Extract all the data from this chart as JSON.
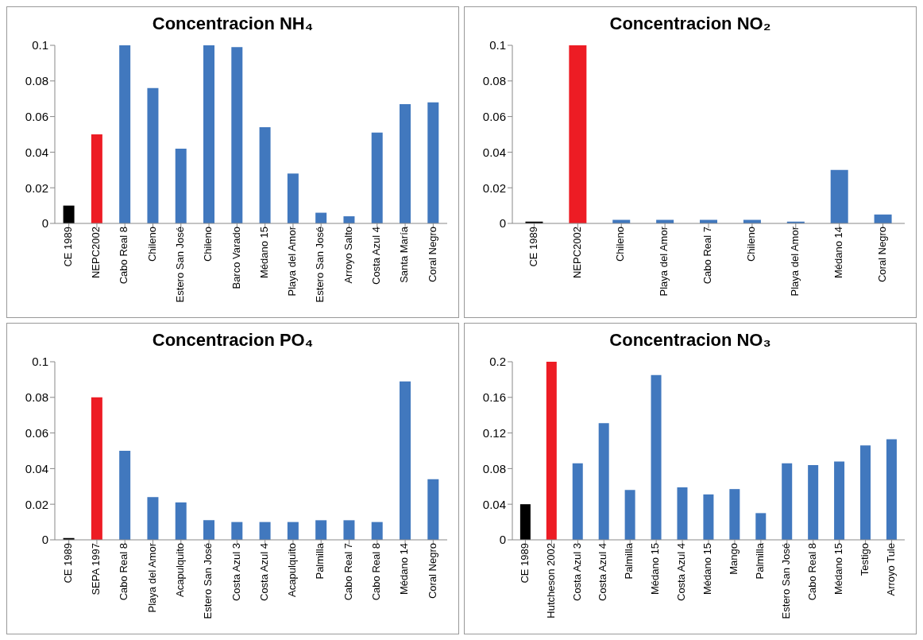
{
  "chart_data": [
    {
      "type": "bar",
      "title": "Concentracion NH₄",
      "categories": [
        "CE 1989",
        "NEPC2002",
        "Cabo Real 8",
        "Chileno",
        "Estero San José",
        "Chileno",
        "Barco Varado",
        "Médano 15",
        "Playa del Amor",
        "Estero San José",
        "Arroyo Salto",
        "Costa Azul 4",
        "Santa María",
        "Coral Negro"
      ],
      "values": [
        0.01,
        0.05,
        0.1,
        0.076,
        0.042,
        0.1,
        0.099,
        0.054,
        0.028,
        0.006,
        0.004,
        0.051,
        0.067,
        0.068
      ],
      "colors": [
        "#000000",
        "#ed1c24",
        "#4178be",
        "#4178be",
        "#4178be",
        "#4178be",
        "#4178be",
        "#4178be",
        "#4178be",
        "#4178be",
        "#4178be",
        "#4178be",
        "#4178be",
        "#4178be"
      ],
      "ylim": [
        0,
        0.1
      ],
      "yticks": [
        0,
        0.02,
        0.04,
        0.06,
        0.08,
        0.1
      ],
      "grid": false,
      "legend": false
    },
    {
      "type": "bar",
      "title": "Concentracion NO₂",
      "categories": [
        "CE 1989",
        "NEPC2002",
        "Chileno",
        "Playa del Amor",
        "Cabo Real 7",
        "Chileno",
        "Playa del Amor",
        "Médano 14",
        "Coral Negro"
      ],
      "values": [
        0.001,
        0.1,
        0.002,
        0.002,
        0.002,
        0.002,
        0.001,
        0.03,
        0.005
      ],
      "colors": [
        "#000000",
        "#ed1c24",
        "#4178be",
        "#4178be",
        "#4178be",
        "#4178be",
        "#4178be",
        "#4178be",
        "#4178be"
      ],
      "ylim": [
        0,
        0.1
      ],
      "yticks": [
        0,
        0.02,
        0.04,
        0.06,
        0.08,
        0.1
      ],
      "grid": false,
      "legend": false
    },
    {
      "type": "bar",
      "title": "Concentracion PO₄",
      "categories": [
        "CE 1989",
        "SEPA 1997",
        "Cabo Real 8",
        "Playa del Amor",
        "Acapulquito",
        "Estero San José",
        "Costa Azul 3",
        "Costa Azul 4",
        "Acapulquito",
        "Palmilla",
        "Cabo Real 7",
        "Cabo Real 8",
        "Médano 14",
        "Coral Negro"
      ],
      "values": [
        0.001,
        0.08,
        0.05,
        0.024,
        0.021,
        0.011,
        0.01,
        0.01,
        0.01,
        0.011,
        0.011,
        0.01,
        0.089,
        0.034
      ],
      "colors": [
        "#000000",
        "#ed1c24",
        "#4178be",
        "#4178be",
        "#4178be",
        "#4178be",
        "#4178be",
        "#4178be",
        "#4178be",
        "#4178be",
        "#4178be",
        "#4178be",
        "#4178be",
        "#4178be"
      ],
      "ylim": [
        0,
        0.1
      ],
      "yticks": [
        0,
        0.02,
        0.04,
        0.06,
        0.08,
        0.1
      ],
      "grid": false,
      "legend": false
    },
    {
      "type": "bar",
      "title": "Concentracion NO₃",
      "categories": [
        "CE 1989",
        "Hutcheson 2002",
        "Costa Azul 3",
        "Costa Azul 4",
        "Palmilla",
        "Médano 15",
        "Costa Azul 4",
        "Médano 15",
        "Mango",
        "Palmilla",
        "Estero San José",
        "Cabo Real 8",
        "Médano 15",
        "Testigo",
        "Arroyo Tule"
      ],
      "values": [
        0.04,
        0.2,
        0.086,
        0.131,
        0.056,
        0.185,
        0.059,
        0.051,
        0.057,
        0.03,
        0.086,
        0.084,
        0.088,
        0.106,
        0.113
      ],
      "colors": [
        "#000000",
        "#ed1c24",
        "#4178be",
        "#4178be",
        "#4178be",
        "#4178be",
        "#4178be",
        "#4178be",
        "#4178be",
        "#4178be",
        "#4178be",
        "#4178be",
        "#4178be",
        "#4178be",
        "#4178be"
      ],
      "ylim": [
        0,
        0.2
      ],
      "yticks": [
        0,
        0.04,
        0.08,
        0.12,
        0.16,
        0.2
      ],
      "grid": false,
      "legend": false
    }
  ]
}
